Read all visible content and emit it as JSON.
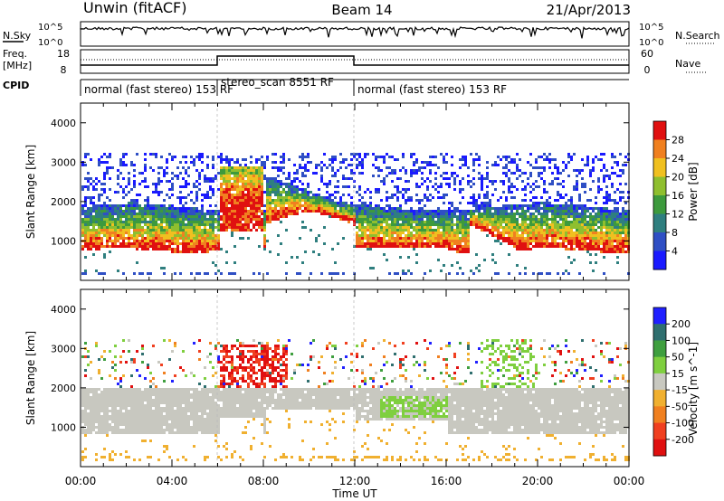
{
  "header": {
    "station": "Unwin (fitACF)",
    "beam": "Beam 14",
    "date": "21/Apr/2013"
  },
  "noise_panel": {
    "left_label": "N.Sky",
    "left_ticks": [
      "10^5",
      "10^0"
    ],
    "right_label": "N.Search",
    "right_ticks": [
      "10^5",
      "10^0"
    ]
  },
  "freq_panel": {
    "left_label_1": "Freq.",
    "left_label_2": "[MHz]",
    "left_ticks": [
      "18",
      "8"
    ],
    "right_label": "Nave",
    "right_ticks": [
      "60",
      "0"
    ]
  },
  "cpid_panel": {
    "label": "CPID",
    "segments": [
      {
        "start_hour": 0,
        "end_hour": 6,
        "text": "normal (fast stereo) 153 RF"
      },
      {
        "start_hour": 6,
        "end_hour": 12,
        "text": "stereo_scan 8551 RF"
      },
      {
        "start_hour": 12,
        "end_hour": 24,
        "text": "normal (fast stereo) 153 RF"
      }
    ]
  },
  "chart_data": [
    {
      "type": "heatmap",
      "name": "power",
      "ylabel": "Slant Range [km]",
      "ylim": [
        0,
        4500
      ],
      "yticks": [
        1000,
        2000,
        3000,
        4000
      ],
      "xlim": [
        0,
        24
      ],
      "colorbar": {
        "label": "Power [dB]",
        "range": [
          0,
          32
        ],
        "tick_values": [
          4,
          8,
          12,
          16,
          20,
          24,
          28
        ],
        "tick_labels": [
          "4",
          "8",
          "12",
          "16",
          "20",
          "24",
          "28"
        ],
        "colors": [
          "#1a1aff",
          "#2f4fc4",
          "#2f7f7f",
          "#3d9a3d",
          "#8fbf2f",
          "#f0c020",
          "#f08020",
          "#e01010"
        ]
      },
      "features": [
        {
          "name": "main_band",
          "from_hour": 0,
          "to_hour": 24,
          "range_km": [
            800,
            2000
          ],
          "power_db": 16
        },
        {
          "name": "stereo_scan_patch",
          "from_hour": 6,
          "to_hour": 8,
          "range_km": [
            1200,
            2900
          ],
          "power_db": 28
        },
        {
          "name": "midday_patch",
          "from_hour": 12,
          "to_hour": 16,
          "range_km": [
            900,
            1700
          ],
          "power_db": 22
        }
      ]
    },
    {
      "type": "heatmap",
      "name": "velocity",
      "ylabel": "Slant Range [km]",
      "ylim": [
        0,
        4500
      ],
      "yticks": [
        1000,
        2000,
        3000,
        4000
      ],
      "xlim": [
        0,
        24
      ],
      "colorbar": {
        "label": "Velocity [m s^-1]",
        "range": [
          -250,
          250
        ],
        "tick_values": [
          200,
          100,
          50,
          15,
          -15,
          -50,
          -100,
          -200
        ],
        "tick_labels": [
          "200",
          "100",
          "50",
          "15",
          "-15",
          "-50",
          "-100",
          "-200"
        ],
        "colors": [
          "#e01010",
          "#f04020",
          "#f08020",
          "#f0b030",
          "#c8c8c0",
          "#7fcf3f",
          "#3f9f3f",
          "#2f6f6f",
          "#2020ff"
        ]
      },
      "features": [
        {
          "name": "ground_scatter_band",
          "from_hour": 0,
          "to_hour": 24,
          "range_km": [
            800,
            2000
          ],
          "velocity": 0
        },
        {
          "name": "negative_patch",
          "from_hour": 6,
          "to_hour": 9,
          "range_km": [
            2000,
            3100
          ],
          "velocity": -200
        },
        {
          "name": "positive_patch",
          "from_hour": 13,
          "to_hour": 16,
          "range_km": [
            1300,
            1800
          ],
          "velocity": 50
        }
      ]
    }
  ],
  "x_axis": {
    "label": "Time UT",
    "tick_labels": [
      "00:00",
      "04:00",
      "08:00",
      "12:00",
      "16:00",
      "20:00",
      "00:00"
    ],
    "tick_hours": [
      0,
      4,
      8,
      12,
      16,
      20,
      24
    ]
  }
}
